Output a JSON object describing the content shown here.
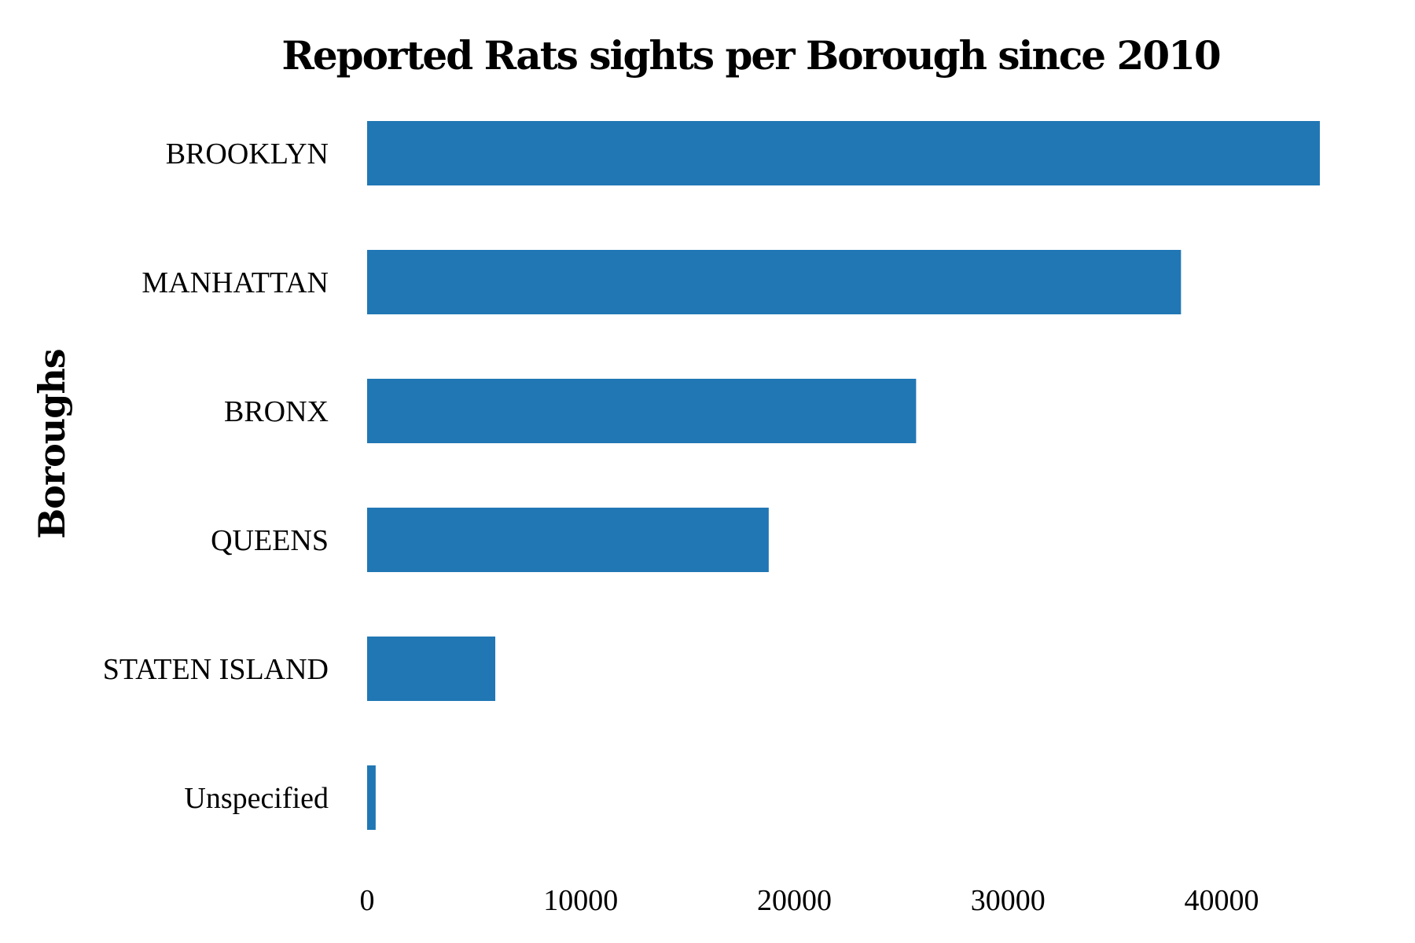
{
  "chart_data": {
    "type": "bar",
    "orientation": "horizontal",
    "title": "Reported Rats sights per Borough since 2010",
    "xlabel": "",
    "ylabel": "Boroughs",
    "categories": [
      "BROOKLYN",
      "MANHATTAN",
      "BRONX",
      "QUEENS",
      "STATEN ISLAND",
      "Unspecified"
    ],
    "values": [
      44600,
      38100,
      25700,
      18800,
      6000,
      400
    ],
    "xlim": [
      0,
      46000
    ],
    "xticks": [
      0,
      10000,
      20000,
      30000,
      40000
    ],
    "xtick_labels": [
      "0",
      "10000",
      "20000",
      "30000",
      "40000"
    ],
    "bar_color": "#2077b4",
    "grid": false,
    "legend": "none"
  }
}
